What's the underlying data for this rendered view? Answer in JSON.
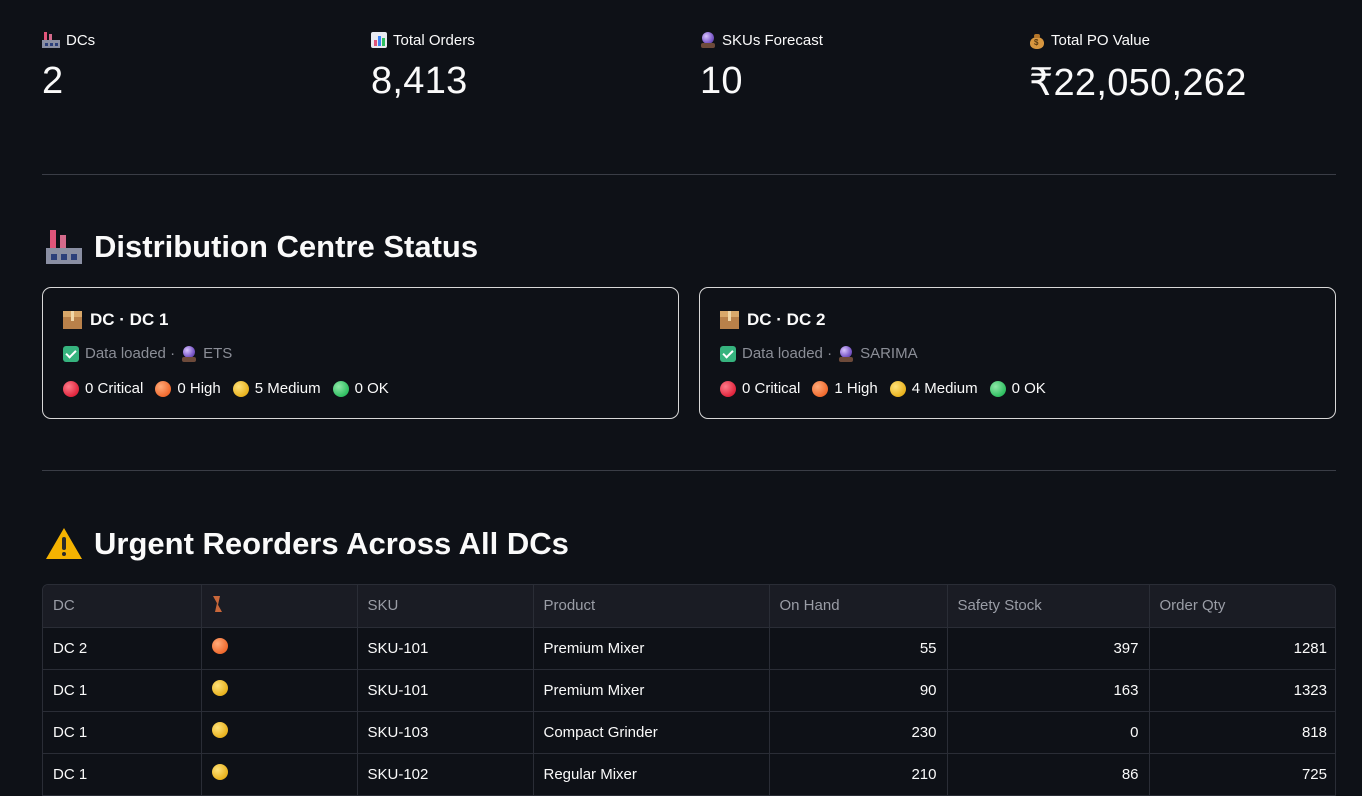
{
  "metrics": [
    {
      "label": "DCs",
      "value": "2",
      "icon": "factory-icon"
    },
    {
      "label": "Total Orders",
      "value": "8,413",
      "icon": "bar-chart-icon"
    },
    {
      "label": "SKUs Forecast",
      "value": "10",
      "icon": "crystal-ball-icon"
    },
    {
      "label": "Total PO Value",
      "value": "₹22,050,262",
      "icon": "money-bag-icon"
    }
  ],
  "dc_section": {
    "title": "Distribution Centre Status",
    "cards": [
      {
        "title": "DC · DC 1",
        "status": "Data loaded ·",
        "model": "ETS",
        "counts": {
          "critical": "0 Critical",
          "high": "0 High",
          "medium": "5 Medium",
          "ok": "0 OK"
        }
      },
      {
        "title": "DC · DC 2",
        "status": "Data loaded ·",
        "model": "SARIMA",
        "counts": {
          "critical": "0 Critical",
          "high": "1 High",
          "medium": "4 Medium",
          "ok": "0 OK"
        }
      }
    ]
  },
  "urgent_section": {
    "title": "Urgent Reorders Across All DCs",
    "columns": [
      "DC",
      "",
      "SKU",
      "Product",
      "On Hand",
      "Safety Stock",
      "Order Qty"
    ],
    "rows": [
      {
        "dc": "DC 2",
        "priority": "high",
        "sku": "SKU-101",
        "product": "Premium Mixer",
        "on_hand": "55",
        "safety_stock": "397",
        "order_qty": "1281"
      },
      {
        "dc": "DC 1",
        "priority": "medium",
        "sku": "SKU-101",
        "product": "Premium Mixer",
        "on_hand": "90",
        "safety_stock": "163",
        "order_qty": "1323"
      },
      {
        "dc": "DC 1",
        "priority": "medium",
        "sku": "SKU-103",
        "product": "Compact Grinder",
        "on_hand": "230",
        "safety_stock": "0",
        "order_qty": "818"
      },
      {
        "dc": "DC 1",
        "priority": "medium",
        "sku": "SKU-102",
        "product": "Regular Mixer",
        "on_hand": "210",
        "safety_stock": "86",
        "order_qty": "725"
      }
    ]
  },
  "colors": {
    "background": "#0e1117",
    "critical": "#e0253d",
    "high": "#f06a2e",
    "medium": "#e8b21e",
    "ok": "#2fbf61"
  }
}
